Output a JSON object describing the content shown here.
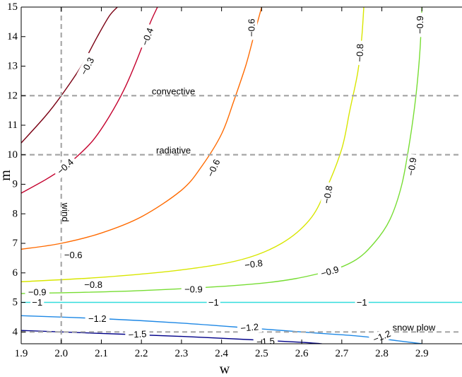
{
  "chart_data": {
    "type": "contour",
    "xlabel": "w",
    "ylabel": "m",
    "xlim": [
      1.9,
      3.0
    ],
    "ylim": [
      3.6,
      15.0
    ],
    "xticks": [
      1.9,
      2.0,
      2.1,
      2.2,
      2.3,
      2.4,
      2.5,
      2.6,
      2.7,
      2.8,
      2.9
    ],
    "yticks": [
      4,
      5,
      6,
      7,
      8,
      9,
      10,
      11,
      12,
      13,
      14,
      15
    ],
    "grid": false,
    "reference_lines": [
      {
        "orientation": "horizontal",
        "value": 12,
        "label": "convective"
      },
      {
        "orientation": "horizontal",
        "value": 10,
        "label": "radiative"
      },
      {
        "orientation": "vertical",
        "value": 2,
        "label": "wind"
      },
      {
        "orientation": "horizontal",
        "value": 4,
        "label": "snow plow"
      }
    ],
    "series": [
      {
        "level": "-0.3",
        "color": "#7a0013",
        "x": [
          1.9,
          1.96,
          2.0,
          2.05,
          2.09,
          2.12,
          2.14
        ],
        "y": [
          10.4,
          11.3,
          12.0,
          13.0,
          14.0,
          14.7,
          15.0
        ],
        "labels": [
          {
            "text": "−0.3",
            "x": 2.065,
            "y": 13.0,
            "angle": -62
          }
        ]
      },
      {
        "level": "-0.4",
        "color": "#c4002d",
        "x": [
          1.9,
          1.96,
          2.0,
          2.04,
          2.08,
          2.12,
          2.16,
          2.2,
          2.22,
          2.24
        ],
        "y": [
          8.7,
          9.15,
          9.5,
          9.95,
          10.5,
          11.3,
          12.3,
          13.6,
          14.4,
          15.0
        ],
        "labels": [
          {
            "text": "−0.4",
            "x": 2.01,
            "y": 9.6,
            "angle": -42
          },
          {
            "text": "−0.4",
            "x": 2.215,
            "y": 14.0,
            "angle": -70
          }
        ]
      },
      {
        "level": "-0.6",
        "color": "#ff6a00",
        "x": [
          1.9,
          2.0,
          2.1,
          2.2,
          2.3,
          2.35,
          2.4,
          2.43,
          2.46,
          2.48,
          2.5
        ],
        "y": [
          6.8,
          7.0,
          7.35,
          7.9,
          8.8,
          9.6,
          10.7,
          11.8,
          13.0,
          14.0,
          15.0
        ],
        "labels": [
          {
            "text": "−0.6",
            "x": 2.03,
            "y": 6.6,
            "angle": 0
          },
          {
            "text": "−0.6",
            "x": 2.38,
            "y": 9.55,
            "angle": -65
          },
          {
            "text": "−0.6",
            "x": 2.475,
            "y": 14.3,
            "angle": -90
          }
        ]
      },
      {
        "level": "-0.8",
        "color": "#d8e600",
        "x": [
          1.9,
          2.1,
          2.3,
          2.45,
          2.55,
          2.62,
          2.66,
          2.7,
          2.72,
          2.74,
          2.75,
          2.755
        ],
        "y": [
          5.7,
          5.85,
          6.1,
          6.45,
          7.0,
          7.8,
          8.8,
          10.2,
          11.5,
          12.8,
          14.0,
          15.0
        ],
        "labels": [
          {
            "text": "−0.8",
            "x": 2.08,
            "y": 5.6,
            "angle": 0
          },
          {
            "text": "−0.8",
            "x": 2.48,
            "y": 6.3,
            "angle": -8
          },
          {
            "text": "−0.8",
            "x": 2.665,
            "y": 8.65,
            "angle": -80
          },
          {
            "text": "−0.8",
            "x": 2.745,
            "y": 13.45,
            "angle": -88
          }
        ]
      },
      {
        "level": "-0.9",
        "color": "#77dd33",
        "x": [
          1.9,
          2.2,
          2.5,
          2.65,
          2.73,
          2.78,
          2.82,
          2.85,
          2.87,
          2.885,
          2.895,
          2.9
        ],
        "y": [
          5.3,
          5.4,
          5.65,
          6.0,
          6.4,
          7.0,
          7.8,
          9.0,
          10.5,
          12.0,
          13.5,
          15.0
        ],
        "labels": [
          {
            "text": "−0.9",
            "x": 1.94,
            "y": 5.35,
            "angle": 0
          },
          {
            "text": "−0.9",
            "x": 2.33,
            "y": 5.45,
            "angle": 0
          },
          {
            "text": "−0.9",
            "x": 2.67,
            "y": 6.05,
            "angle": -15
          },
          {
            "text": "−0.9",
            "x": 2.875,
            "y": 9.6,
            "angle": -82
          },
          {
            "text": "−0.9",
            "x": 2.895,
            "y": 14.4,
            "angle": -90
          }
        ]
      },
      {
        "level": "-1",
        "color": "#33dddd",
        "x": [
          1.9,
          3.0
        ],
        "y": [
          5.0,
          5.0
        ],
        "labels": [
          {
            "text": "−1",
            "x": 1.94,
            "y": 5.0,
            "angle": 0
          },
          {
            "text": "−1",
            "x": 2.38,
            "y": 5.0,
            "angle": 0
          },
          {
            "text": "−1",
            "x": 2.75,
            "y": 5.0,
            "angle": 0
          }
        ]
      },
      {
        "level": "-1.2",
        "color": "#1e88e5",
        "x": [
          1.9,
          2.1,
          2.3,
          2.5,
          2.65,
          2.75,
          2.84,
          2.9
        ],
        "y": [
          4.55,
          4.45,
          4.3,
          4.1,
          3.95,
          3.85,
          3.7,
          3.6
        ],
        "labels": [
          {
            "text": "−1.2",
            "x": 2.09,
            "y": 4.45,
            "angle": 0
          },
          {
            "text": "−1.2",
            "x": 2.47,
            "y": 4.15,
            "angle": -5
          },
          {
            "text": "−1.2",
            "x": 2.8,
            "y": 3.85,
            "angle": -22
          }
        ]
      },
      {
        "level": "-1.5",
        "color": "#000088",
        "x": [
          1.9,
          2.1,
          2.3,
          2.5,
          2.6,
          2.65
        ],
        "y": [
          4.05,
          3.95,
          3.85,
          3.72,
          3.65,
          3.6
        ],
        "labels": [
          {
            "text": "−1.5",
            "x": 2.19,
            "y": 3.92,
            "angle": -3
          },
          {
            "text": "−1.5",
            "x": 2.51,
            "y": 3.68,
            "angle": -3
          }
        ]
      }
    ]
  }
}
